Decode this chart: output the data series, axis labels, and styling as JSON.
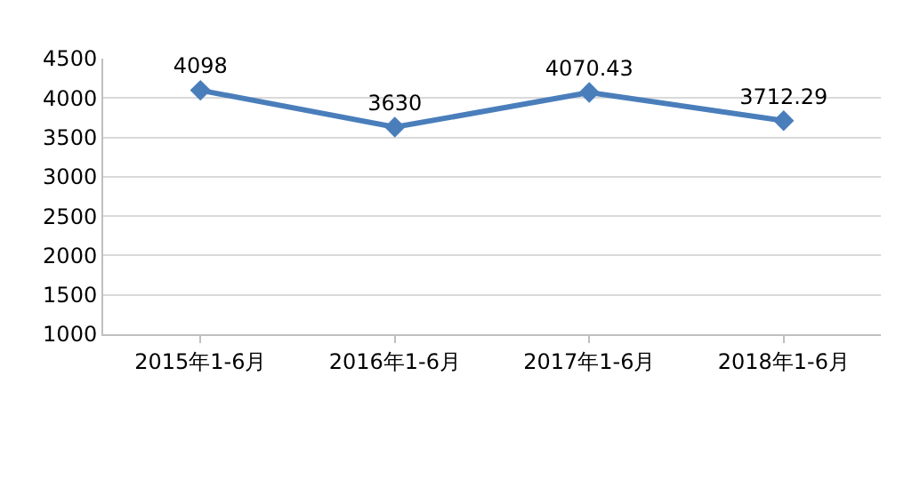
{
  "chart_data": {
    "type": "line",
    "categories": [
      "2015年1-6月",
      "2016年1-6月",
      "2017年1-6月",
      "2018年1-6月"
    ],
    "series": [
      {
        "color": "#4a7ebb",
        "values": [
          4098,
          3630,
          4070.43,
          3712.29
        ]
      }
    ],
    "ylim": [
      1000,
      4500
    ],
    "yticks": [
      1000,
      1500,
      2000,
      2500,
      3000,
      3500,
      4000,
      4500
    ],
    "grid": "y",
    "marker": "diamond",
    "data_labels": true,
    "legend": false
  }
}
